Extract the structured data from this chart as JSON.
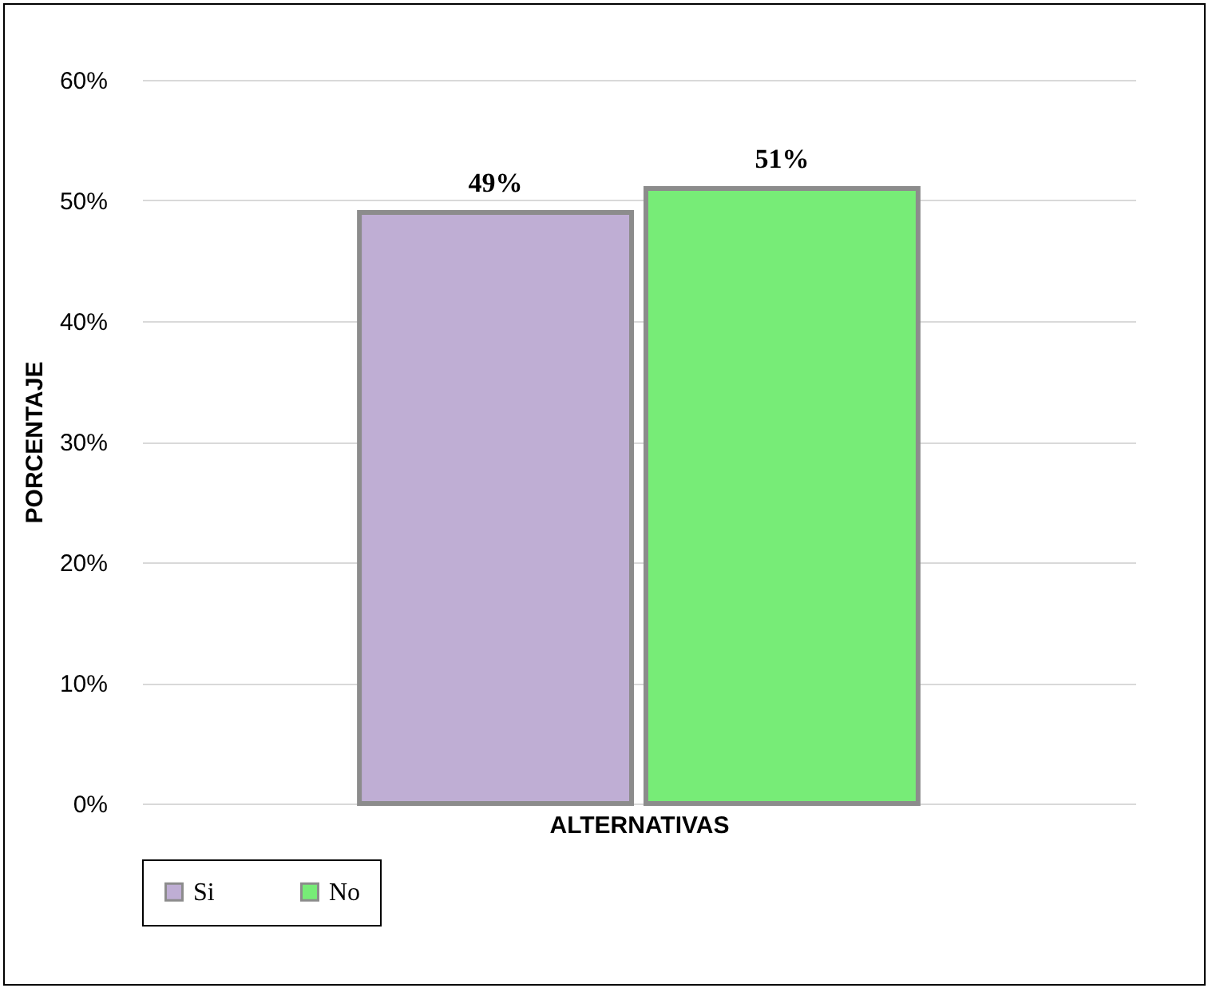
{
  "chart_data": {
    "type": "bar",
    "xlabel": "ALTERNATIVAS",
    "ylabel": "PORCENTAJE",
    "categories": [
      null
    ],
    "series": [
      {
        "name": "Si",
        "color": "#bfaed4",
        "values": [
          49
        ],
        "value_labels": [
          "49%"
        ]
      },
      {
        "name": "No",
        "color": "#77ec77",
        "values": [
          51
        ],
        "value_labels": [
          "51%"
        ]
      }
    ],
    "ylim": [
      0,
      60
    ],
    "yticks": [
      {
        "value": 0,
        "label": "0%"
      },
      {
        "value": 10,
        "label": "10%"
      },
      {
        "value": 20,
        "label": "20%"
      },
      {
        "value": 30,
        "label": "30%"
      },
      {
        "value": 40,
        "label": "40%"
      },
      {
        "value": 50,
        "label": "50%"
      },
      {
        "value": 60,
        "label": "60%"
      }
    ],
    "grid": "y",
    "legend": "bottom"
  }
}
